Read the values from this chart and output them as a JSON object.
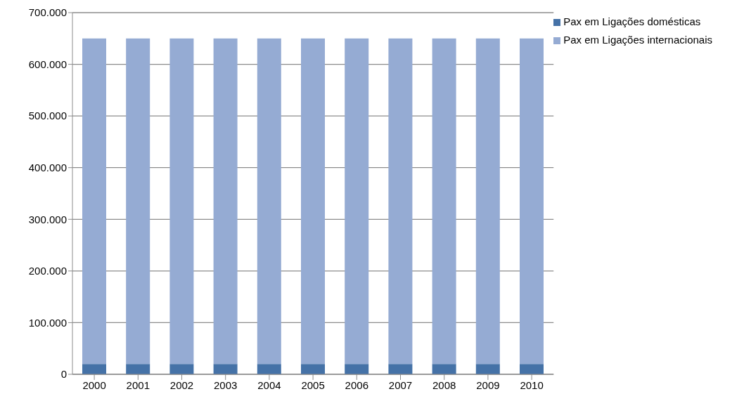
{
  "chart_data": {
    "type": "bar",
    "stacked": true,
    "categories": [
      "2000",
      "2001",
      "2002",
      "2003",
      "2004",
      "2005",
      "2006",
      "2007",
      "2008",
      "2009",
      "2010"
    ],
    "series": [
      {
        "name": "Pax em Ligações domésticas",
        "color": "#4572a7",
        "values": [
          20000,
          20000,
          20000,
          20000,
          20000,
          20000,
          20000,
          20000,
          20000,
          20000,
          20000
        ]
      },
      {
        "name": "Pax em Ligações internacionais",
        "color": "#95abd3",
        "values": [
          630000,
          630000,
          630000,
          630000,
          630000,
          630000,
          630000,
          630000,
          630000,
          630000,
          630000
        ]
      }
    ],
    "ylim": [
      0,
      700000
    ],
    "yticks": [
      {
        "value": 0,
        "label": "0"
      },
      {
        "value": 100000,
        "label": "100.000"
      },
      {
        "value": 200000,
        "label": "200.000"
      },
      {
        "value": 300000,
        "label": "300.000"
      },
      {
        "value": 400000,
        "label": "400.000"
      },
      {
        "value": 500000,
        "label": "500.000"
      },
      {
        "value": 600000,
        "label": "600.000"
      },
      {
        "value": 700000,
        "label": "700.000"
      }
    ],
    "grid": "y",
    "legend": "top right"
  }
}
